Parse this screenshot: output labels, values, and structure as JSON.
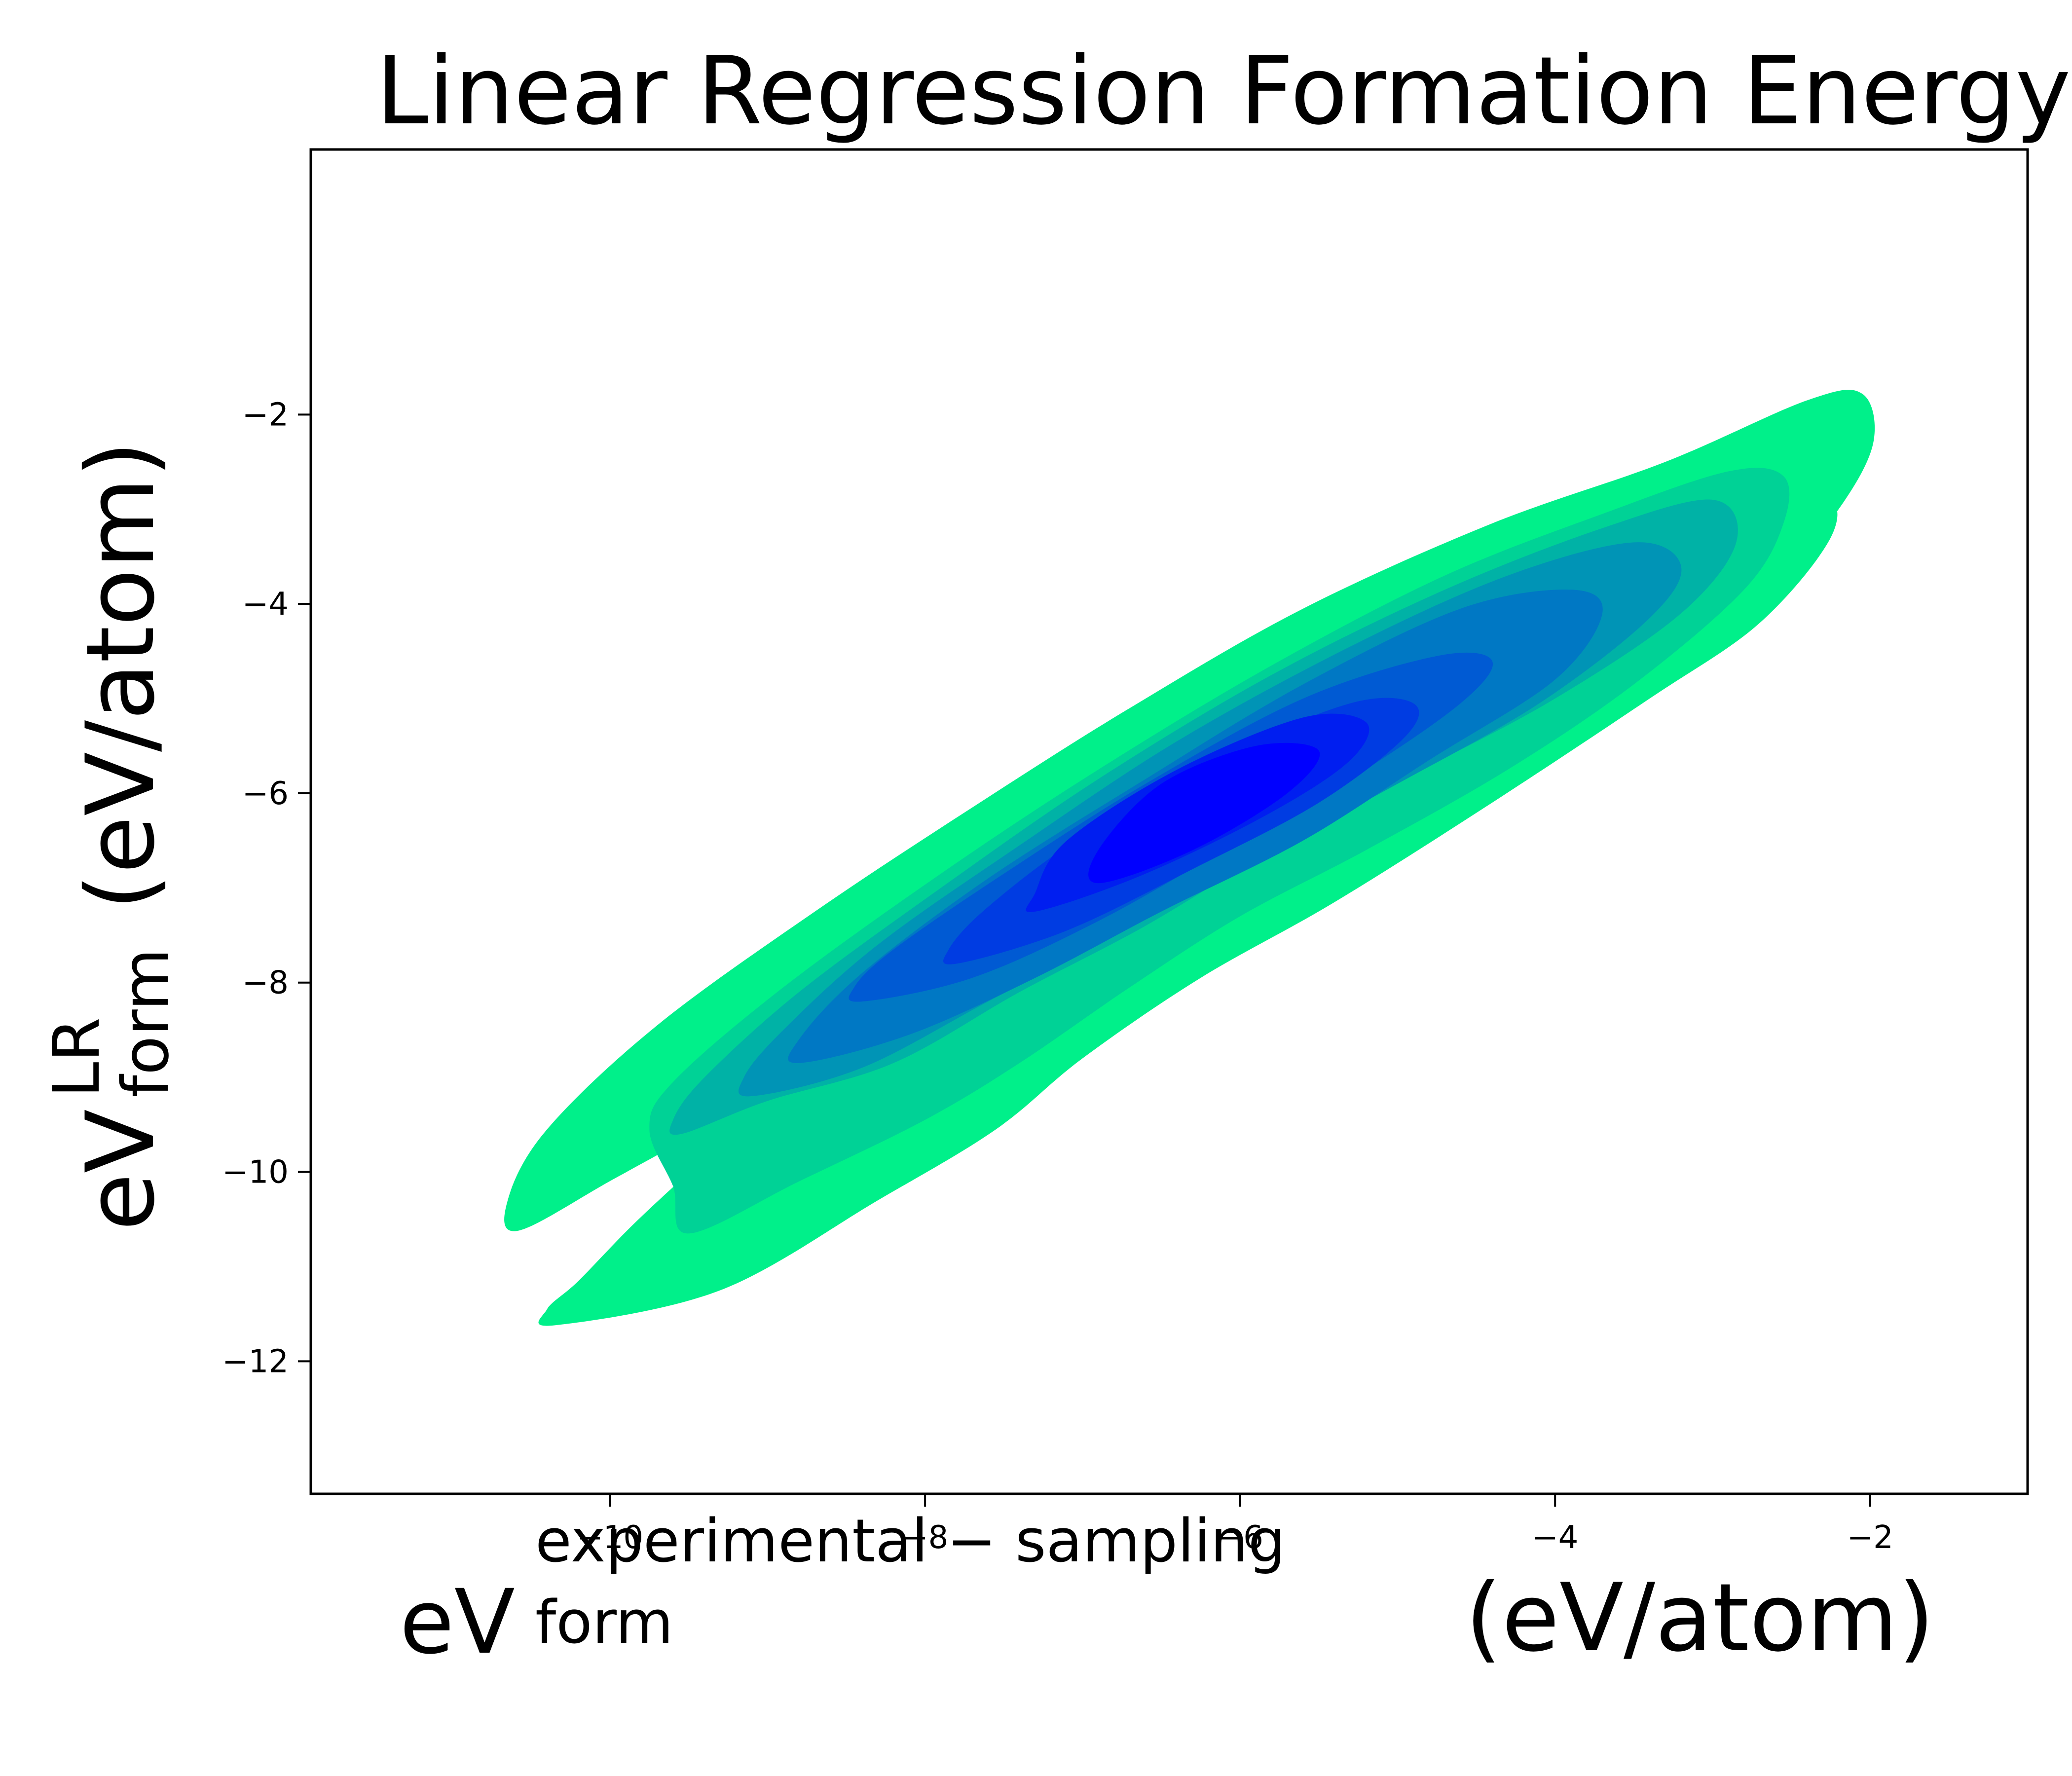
{
  "chart_data": {
    "type": "kde-contour",
    "title": "Linear Regression Formation Energy",
    "xlabel": {
      "base": "eV",
      "superscript": "experimental − sampling",
      "subscript": "form",
      "unit": "(eV/atom)"
    },
    "ylabel": {
      "base": "eV",
      "superscript": "LR",
      "subscript": "form",
      "unit": "(eV/atom)"
    },
    "xlim": [
      -11.9,
      -1.0
    ],
    "ylim": [
      -13.4,
      0.8
    ],
    "xticks": [
      -10,
      -8,
      -6,
      -4,
      -2
    ],
    "xtick_labels": [
      "−10",
      "−8",
      "−6",
      "−4",
      "−2"
    ],
    "yticks": [
      -2,
      -4,
      -6,
      -8,
      -10,
      -12
    ],
    "ytick_labels": [
      "−2",
      "−4",
      "−6",
      "−8",
      "−10",
      "−12"
    ],
    "grid": false,
    "colormap": "winter_r",
    "levels": [
      {
        "level": 1,
        "color": "#00f08a",
        "polygons": [
          [
            [
              -10.58,
              -10.62
            ],
            [
              -9.95,
              -10.05
            ],
            [
              -9.1,
              -9.28
            ],
            [
              -8.25,
              -8.55
            ],
            [
              -7.3,
              -7.75
            ],
            [
              -6.55,
              -7.05
            ],
            [
              -5.6,
              -6.3
            ],
            [
              -4.6,
              -5.55
            ],
            [
              -3.55,
              -4.75
            ],
            [
              -2.6,
              -3.75
            ],
            [
              -2.2,
              -3.0
            ],
            [
              -1.98,
              -2.3
            ],
            [
              -2.05,
              -1.78
            ],
            [
              -2.4,
              -1.85
            ],
            [
              -3.3,
              -2.5
            ],
            [
              -4.4,
              -3.15
            ],
            [
              -5.6,
              -4.05
            ],
            [
              -6.7,
              -5.1
            ],
            [
              -7.7,
              -6.15
            ],
            [
              -8.7,
              -7.25
            ],
            [
              -9.7,
              -8.45
            ],
            [
              -10.4,
              -9.55
            ],
            [
              -10.65,
              -10.3
            ]
          ],
          [
            [
              -10.35,
              -11.62
            ],
            [
              -9.3,
              -11.25
            ],
            [
              -8.3,
              -10.3
            ],
            [
              -7.55,
              -9.55
            ],
            [
              -7.0,
              -8.8
            ],
            [
              -6.25,
              -7.95
            ],
            [
              -5.4,
              -7.15
            ],
            [
              -4.4,
              -6.1
            ],
            [
              -3.4,
              -5.0
            ],
            [
              -2.7,
              -4.2
            ],
            [
              -2.25,
              -3.3
            ],
            [
              -2.3,
              -2.9
            ],
            [
              -2.9,
              -3.35
            ],
            [
              -3.7,
              -4.1
            ],
            [
              -4.7,
              -5.05
            ],
            [
              -5.6,
              -5.95
            ],
            [
              -6.4,
              -6.75
            ],
            [
              -7.3,
              -7.55
            ],
            [
              -8.2,
              -8.4
            ],
            [
              -8.9,
              -9.05
            ],
            [
              -9.4,
              -9.85
            ],
            [
              -9.85,
              -10.55
            ],
            [
              -10.2,
              -11.15
            ],
            [
              -10.4,
              -11.45
            ]
          ]
        ]
      },
      {
        "level": 2,
        "color": "#00d296",
        "polygons": [
          [
            [
              -9.5,
              -10.65
            ],
            [
              -8.8,
              -10.1
            ],
            [
              -8.0,
              -9.45
            ],
            [
              -7.4,
              -8.85
            ],
            [
              -6.7,
              -8.05
            ],
            [
              -6.0,
              -7.3
            ],
            [
              -5.2,
              -6.6
            ],
            [
              -4.3,
              -5.75
            ],
            [
              -3.5,
              -4.85
            ],
            [
              -2.8,
              -3.85
            ],
            [
              -2.55,
              -3.15
            ],
            [
              -2.55,
              -2.65
            ],
            [
              -2.9,
              -2.6
            ],
            [
              -3.7,
              -3.05
            ],
            [
              -4.7,
              -3.7
            ],
            [
              -5.8,
              -4.65
            ],
            [
              -6.9,
              -5.75
            ],
            [
              -7.9,
              -6.85
            ],
            [
              -8.9,
              -8.05
            ],
            [
              -9.6,
              -9.05
            ],
            [
              -9.75,
              -9.55
            ],
            [
              -9.6,
              -10.15
            ]
          ]
        ]
      },
      {
        "level": 3,
        "color": "#00b2a6",
        "polygons": [
          [
            [
              -9.55,
              -9.6
            ],
            [
              -9.0,
              -9.25
            ],
            [
              -8.2,
              -8.85
            ],
            [
              -7.4,
              -8.1
            ],
            [
              -6.6,
              -7.4
            ],
            [
              -5.8,
              -6.6
            ],
            [
              -4.9,
              -5.8
            ],
            [
              -4.0,
              -5.0
            ],
            [
              -3.2,
              -4.1
            ],
            [
              -2.85,
              -3.35
            ],
            [
              -3.0,
              -2.9
            ],
            [
              -3.7,
              -3.2
            ],
            [
              -4.7,
              -3.85
            ],
            [
              -5.8,
              -4.75
            ],
            [
              -6.9,
              -5.85
            ],
            [
              -7.9,
              -7.0
            ],
            [
              -8.8,
              -8.1
            ],
            [
              -9.4,
              -9.0
            ],
            [
              -9.6,
              -9.45
            ]
          ]
        ]
      },
      {
        "level": 4,
        "color": "#0094b6",
        "polygons": [
          [
            [
              -9.1,
              -9.2
            ],
            [
              -8.4,
              -8.9
            ],
            [
              -7.6,
              -8.2
            ],
            [
              -6.8,
              -7.5
            ],
            [
              -5.9,
              -6.7
            ],
            [
              -5.0,
              -5.9
            ],
            [
              -4.1,
              -5.05
            ],
            [
              -3.4,
              -4.15
            ],
            [
              -3.2,
              -3.6
            ],
            [
              -3.5,
              -3.35
            ],
            [
              -4.3,
              -3.7
            ],
            [
              -5.3,
              -4.45
            ],
            [
              -6.4,
              -5.45
            ],
            [
              -7.4,
              -6.55
            ],
            [
              -8.3,
              -7.6
            ],
            [
              -8.9,
              -8.5
            ],
            [
              -9.15,
              -9.0
            ]
          ]
        ]
      },
      {
        "level": 5,
        "color": "#0078c4",
        "polygons": [
          [
            [
              -8.8,
              -8.85
            ],
            [
              -8.1,
              -8.55
            ],
            [
              -7.3,
              -7.95
            ],
            [
              -6.5,
              -7.25
            ],
            [
              -5.6,
              -6.5
            ],
            [
              -4.8,
              -5.65
            ],
            [
              -4.0,
              -4.8
            ],
            [
              -3.7,
              -4.1
            ],
            [
              -3.9,
              -3.85
            ],
            [
              -4.6,
              -4.05
            ],
            [
              -5.6,
              -4.85
            ],
            [
              -6.6,
              -5.85
            ],
            [
              -7.6,
              -6.9
            ],
            [
              -8.4,
              -7.9
            ],
            [
              -8.8,
              -8.6
            ]
          ]
        ]
      },
      {
        "level": 6,
        "color": "#005ad3",
        "polygons": [
          [
            [
              -8.4,
              -8.2
            ],
            [
              -7.7,
              -7.95
            ],
            [
              -6.9,
              -7.35
            ],
            [
              -6.1,
              -6.6
            ],
            [
              -5.3,
              -5.85
            ],
            [
              -4.6,
              -5.05
            ],
            [
              -4.4,
              -4.6
            ],
            [
              -4.75,
              -4.55
            ],
            [
              -5.6,
              -5.0
            ],
            [
              -6.6,
              -5.9
            ],
            [
              -7.5,
              -6.85
            ],
            [
              -8.2,
              -7.65
            ],
            [
              -8.45,
              -8.05
            ]
          ]
        ]
      },
      {
        "level": 7,
        "color": "#003ce2",
        "polygons": [
          [
            [
              -7.8,
              -7.8
            ],
            [
              -7.1,
              -7.45
            ],
            [
              -6.3,
              -6.8
            ],
            [
              -5.5,
              -6.1
            ],
            [
              -4.95,
              -5.4
            ],
            [
              -4.9,
              -5.05
            ],
            [
              -5.3,
              -5.05
            ],
            [
              -6.1,
              -5.6
            ],
            [
              -7.0,
              -6.45
            ],
            [
              -7.6,
              -7.2
            ],
            [
              -7.85,
              -7.65
            ]
          ]
        ]
      },
      {
        "level": 8,
        "color": "#001ef0",
        "polygons": [
          [
            [
              -7.3,
              -7.25
            ],
            [
              -6.6,
              -6.85
            ],
            [
              -5.8,
              -6.2
            ],
            [
              -5.3,
              -5.65
            ],
            [
              -5.2,
              -5.25
            ],
            [
              -5.6,
              -5.2
            ],
            [
              -6.4,
              -5.75
            ],
            [
              -7.1,
              -6.5
            ],
            [
              -7.3,
              -7.05
            ]
          ]
        ]
      },
      {
        "level": 9,
        "color": "#0000ff",
        "polygons": [
          [
            [
              -6.9,
              -6.95
            ],
            [
              -6.3,
              -6.6
            ],
            [
              -5.7,
              -6.0
            ],
            [
              -5.5,
              -5.55
            ],
            [
              -5.9,
              -5.5
            ],
            [
              -6.5,
              -5.9
            ],
            [
              -6.9,
              -6.6
            ]
          ]
        ]
      }
    ]
  }
}
